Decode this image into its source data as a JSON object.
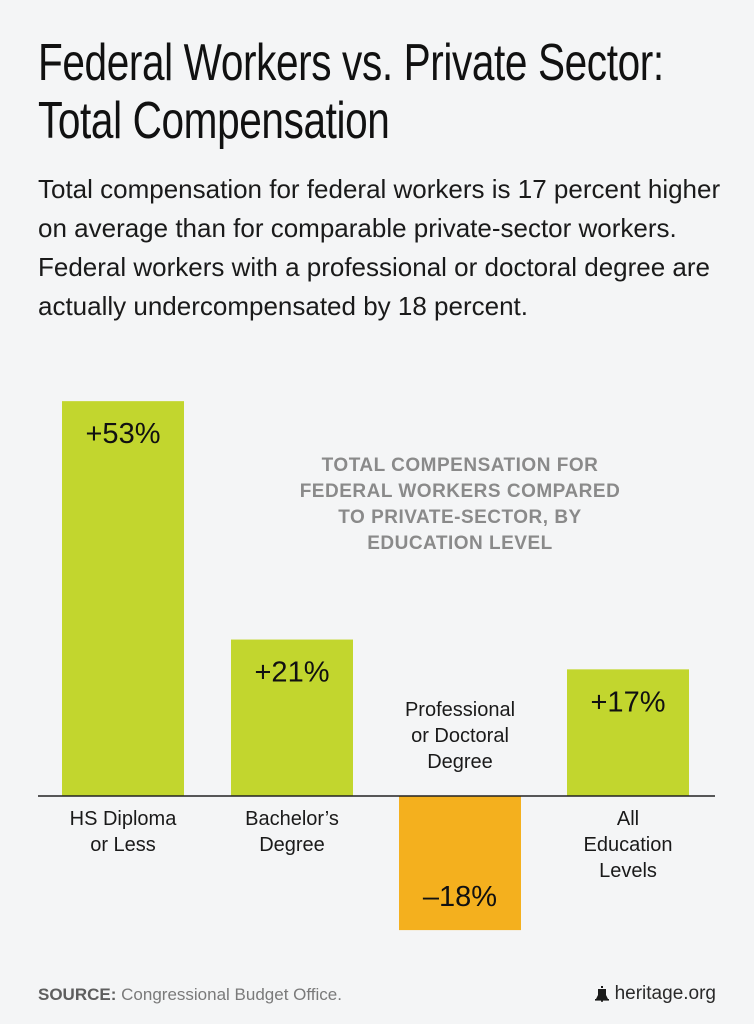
{
  "header": {
    "title_line1": "Federal Workers vs. Private Sector:",
    "title_line2": "Total Compensation",
    "subtitle": "Total compensation for federal workers is 17 percent higher on average than for comparable private-sector workers. Federal workers with a professional or doctoral degree are actually undercompensated by 18 percent."
  },
  "chart_data": {
    "type": "bar",
    "title_lines": [
      "TOTAL COMPENSATION FOR",
      "FEDERAL WORKERS COMPARED",
      "TO PRIVATE-SECTOR, BY",
      "EDUCATION LEVEL"
    ],
    "categories": [
      [
        "HS Diploma",
        "or Less"
      ],
      [
        "Bachelor’s",
        "Degree"
      ],
      [
        "Professional",
        "or Doctoral",
        "Degree"
      ],
      [
        "All",
        "Education",
        "Levels"
      ]
    ],
    "values": [
      53,
      21,
      -18,
      17
    ],
    "value_labels": [
      "+53%",
      "+21%",
      "–18%",
      "+17%"
    ],
    "unit": "%",
    "positive_color": "#c2d62e",
    "negative_color": "#f4b01e",
    "axis_color": "#222222"
  },
  "footer": {
    "source_label": "SOURCE:",
    "source_text": "Congressional Budget Office.",
    "brand": "heritage.org",
    "brand_icon": "liberty-bell-icon"
  }
}
